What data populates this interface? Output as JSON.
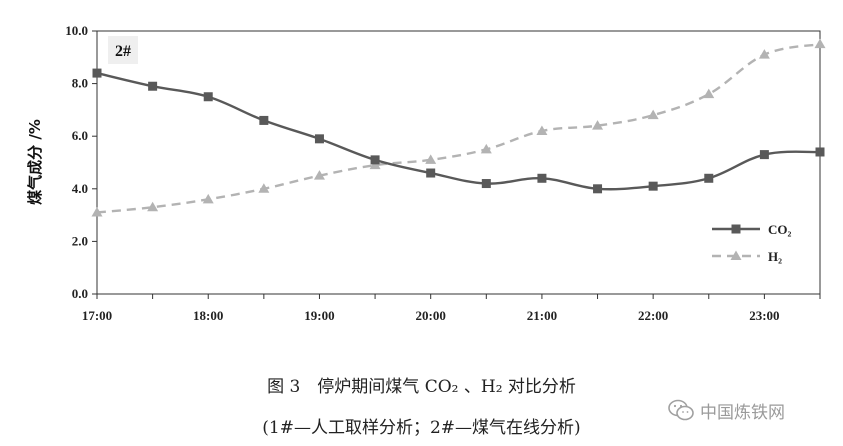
{
  "chart_data": {
    "type": "line",
    "panel_label": "2#",
    "ylabel": "煤气成分 /%",
    "x_tick_labels": [
      "17:00",
      "18:00",
      "19:00",
      "20:00",
      "21:00",
      "22:00",
      "23:00"
    ],
    "x": [
      "17:00",
      "17:30",
      "18:00",
      "18:30",
      "19:00",
      "19:30",
      "20:00",
      "20:30",
      "21:00",
      "21:30",
      "22:00",
      "22:30",
      "23:00",
      "23:30"
    ],
    "xlim": [
      "17:00",
      "23:30"
    ],
    "y_tick_labels": [
      "0.0",
      "2.0",
      "4.0",
      "6.0",
      "8.0",
      "10.0"
    ],
    "ylim": [
      0,
      10
    ],
    "legend_position": "right",
    "series": [
      {
        "name": "CO₂",
        "color": "#595959",
        "style": "solid",
        "marker": "square",
        "values": [
          8.4,
          7.9,
          7.5,
          6.6,
          5.9,
          5.1,
          4.6,
          4.2,
          4.4,
          4.0,
          4.1,
          4.4,
          5.3,
          5.4
        ]
      },
      {
        "name": "H₂",
        "color": "#b3b3b3",
        "style": "dashed",
        "marker": "triangle",
        "values": [
          3.1,
          3.3,
          3.6,
          4.0,
          4.5,
          4.9,
          5.1,
          5.5,
          6.2,
          6.4,
          6.8,
          7.6,
          9.1,
          9.5
        ]
      }
    ]
  },
  "captions": {
    "line1": "图 3　停炉期间煤气 CO₂ 、H₂ 对比分析",
    "line2": "(1#—人工取样分析；2#—煤气在线分析)"
  },
  "watermark": {
    "text": "中国炼铁网",
    "icon": "wechat-icon"
  }
}
